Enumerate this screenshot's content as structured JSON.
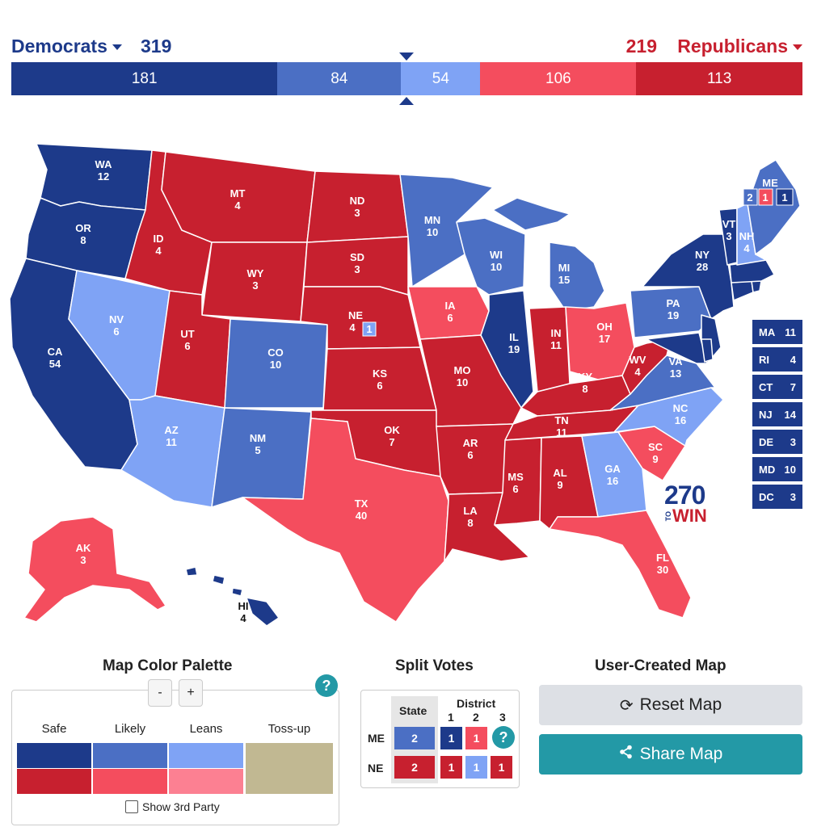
{
  "totals": {
    "dem_label": "Democrats",
    "dem_total": "319",
    "rep_total": "219",
    "rep_label": "Republicans",
    "segments": [
      {
        "value": "181",
        "color": "#1d3a8a",
        "share": 181
      },
      {
        "value": "84",
        "color": "#4b6fc4",
        "share": 84
      },
      {
        "value": "54",
        "color": "#7fa3f5",
        "share": 54
      },
      {
        "value": "106",
        "color": "#f44d5e",
        "share": 106
      },
      {
        "value": "113",
        "color": "#c7202f",
        "share": 113
      }
    ]
  },
  "colors": {
    "safe_d": "#1d3a8a",
    "likely_d": "#4b6fc4",
    "lean_d": "#7fa3f5",
    "safe_r": "#c7202f",
    "likely_r": "#f44d5e",
    "lean_r": "#fc8092",
    "tossup": "#c1b892"
  },
  "states": {
    "WA": {
      "abbr": "WA",
      "ev": "12"
    },
    "OR": {
      "abbr": "OR",
      "ev": "8"
    },
    "CA": {
      "abbr": "CA",
      "ev": "54"
    },
    "NV": {
      "abbr": "NV",
      "ev": "6"
    },
    "ID": {
      "abbr": "ID",
      "ev": "4"
    },
    "MT": {
      "abbr": "MT",
      "ev": "4"
    },
    "WY": {
      "abbr": "WY",
      "ev": "3"
    },
    "UT": {
      "abbr": "UT",
      "ev": "6"
    },
    "AZ": {
      "abbr": "AZ",
      "ev": "11"
    },
    "CO": {
      "abbr": "CO",
      "ev": "10"
    },
    "NM": {
      "abbr": "NM",
      "ev": "5"
    },
    "ND": {
      "abbr": "ND",
      "ev": "3"
    },
    "SD": {
      "abbr": "SD",
      "ev": "3"
    },
    "NE": {
      "abbr": "NE",
      "ev": "4",
      "district": "1"
    },
    "KS": {
      "abbr": "KS",
      "ev": "6"
    },
    "OK": {
      "abbr": "OK",
      "ev": "7"
    },
    "TX": {
      "abbr": "TX",
      "ev": "40"
    },
    "MN": {
      "abbr": "MN",
      "ev": "10"
    },
    "IA": {
      "abbr": "IA",
      "ev": "6"
    },
    "MO": {
      "abbr": "MO",
      "ev": "10"
    },
    "AR": {
      "abbr": "AR",
      "ev": "6"
    },
    "LA": {
      "abbr": "LA",
      "ev": "8"
    },
    "WI": {
      "abbr": "WI",
      "ev": "10"
    },
    "IL": {
      "abbr": "IL",
      "ev": "19"
    },
    "MI": {
      "abbr": "MI",
      "ev": "15"
    },
    "IN": {
      "abbr": "IN",
      "ev": "11"
    },
    "OH": {
      "abbr": "OH",
      "ev": "17"
    },
    "KY": {
      "abbr": "KY",
      "ev": "8"
    },
    "TN": {
      "abbr": "TN",
      "ev": "11"
    },
    "MS": {
      "abbr": "MS",
      "ev": "6"
    },
    "AL": {
      "abbr": "AL",
      "ev": "9"
    },
    "GA": {
      "abbr": "GA",
      "ev": "16"
    },
    "FL": {
      "abbr": "FL",
      "ev": "30"
    },
    "SC": {
      "abbr": "SC",
      "ev": "9"
    },
    "NC": {
      "abbr": "NC",
      "ev": "16"
    },
    "VA": {
      "abbr": "VA",
      "ev": "13"
    },
    "WV": {
      "abbr": "WV",
      "ev": "4"
    },
    "PA": {
      "abbr": "PA",
      "ev": "19"
    },
    "NY": {
      "abbr": "NY",
      "ev": "28"
    },
    "VT": {
      "abbr": "VT",
      "ev": "3"
    },
    "NH": {
      "abbr": "NH",
      "ev": "4"
    },
    "ME": {
      "abbr": "ME",
      "d_statewide": "2",
      "d_cd1": "1",
      "d_cd2": "1"
    },
    "AK": {
      "abbr": "AK",
      "ev": "3"
    },
    "HI": {
      "abbr": "HI",
      "ev": "4"
    }
  },
  "small_states": [
    {
      "abbr": "MA",
      "ev": "11"
    },
    {
      "abbr": "RI",
      "ev": "4"
    },
    {
      "abbr": "CT",
      "ev": "7"
    },
    {
      "abbr": "NJ",
      "ev": "14"
    },
    {
      "abbr": "DE",
      "ev": "3"
    },
    {
      "abbr": "MD",
      "ev": "10"
    },
    {
      "abbr": "DC",
      "ev": "3"
    }
  ],
  "logo": {
    "big": "270",
    "to": "TO",
    "win": "WIN"
  },
  "palette": {
    "title": "Map Color Palette",
    "minus": "-",
    "plus": "+",
    "help": "?",
    "headers": [
      "Safe",
      "Likely",
      "Leans",
      "Toss-up"
    ],
    "show_third": "Show 3rd Party"
  },
  "split": {
    "title": "Split Votes",
    "state_hdr": "State",
    "district_hdr": "District",
    "d1": "1",
    "d2": "2",
    "d3": "3",
    "me": {
      "label": "ME",
      "state": "2",
      "c1": "1",
      "c2": "1",
      "c3": "?"
    },
    "ne": {
      "label": "NE",
      "state": "2",
      "c1": "1",
      "c2": "1",
      "c3": "1"
    }
  },
  "user_map": {
    "title": "User-Created Map",
    "reset": "Reset Map",
    "share": "Share Map"
  }
}
